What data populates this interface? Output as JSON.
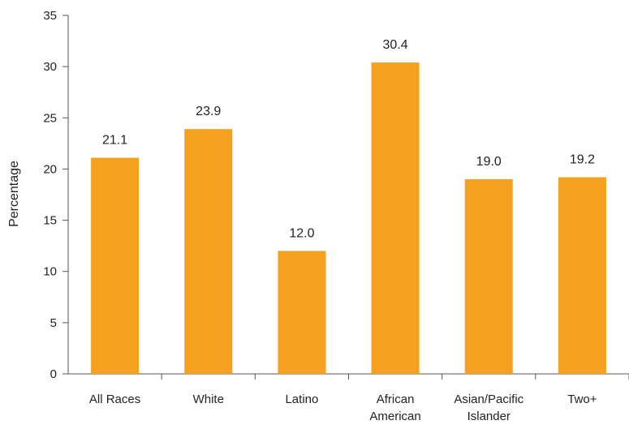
{
  "chart_data": {
    "type": "bar",
    "categories": [
      [
        "All Races"
      ],
      [
        "White"
      ],
      [
        "Latino"
      ],
      [
        "African",
        "American"
      ],
      [
        "Asian/Pacific",
        "Islander"
      ],
      [
        "Two+"
      ]
    ],
    "values": [
      21.1,
      23.9,
      12.0,
      30.4,
      19.0,
      19.2
    ],
    "data_labels": [
      "21.1",
      "23.9",
      "12.0",
      "30.4",
      "19.0",
      "19.2"
    ],
    "ylabel": "Percentage",
    "xlabel": "",
    "title": "",
    "ylim": [
      0,
      35
    ],
    "yticks": [
      0,
      5,
      10,
      15,
      20,
      25,
      30,
      35
    ],
    "grid": false,
    "legend": "none",
    "bar_color": "#F5A01F",
    "axis_color": "#555555"
  }
}
